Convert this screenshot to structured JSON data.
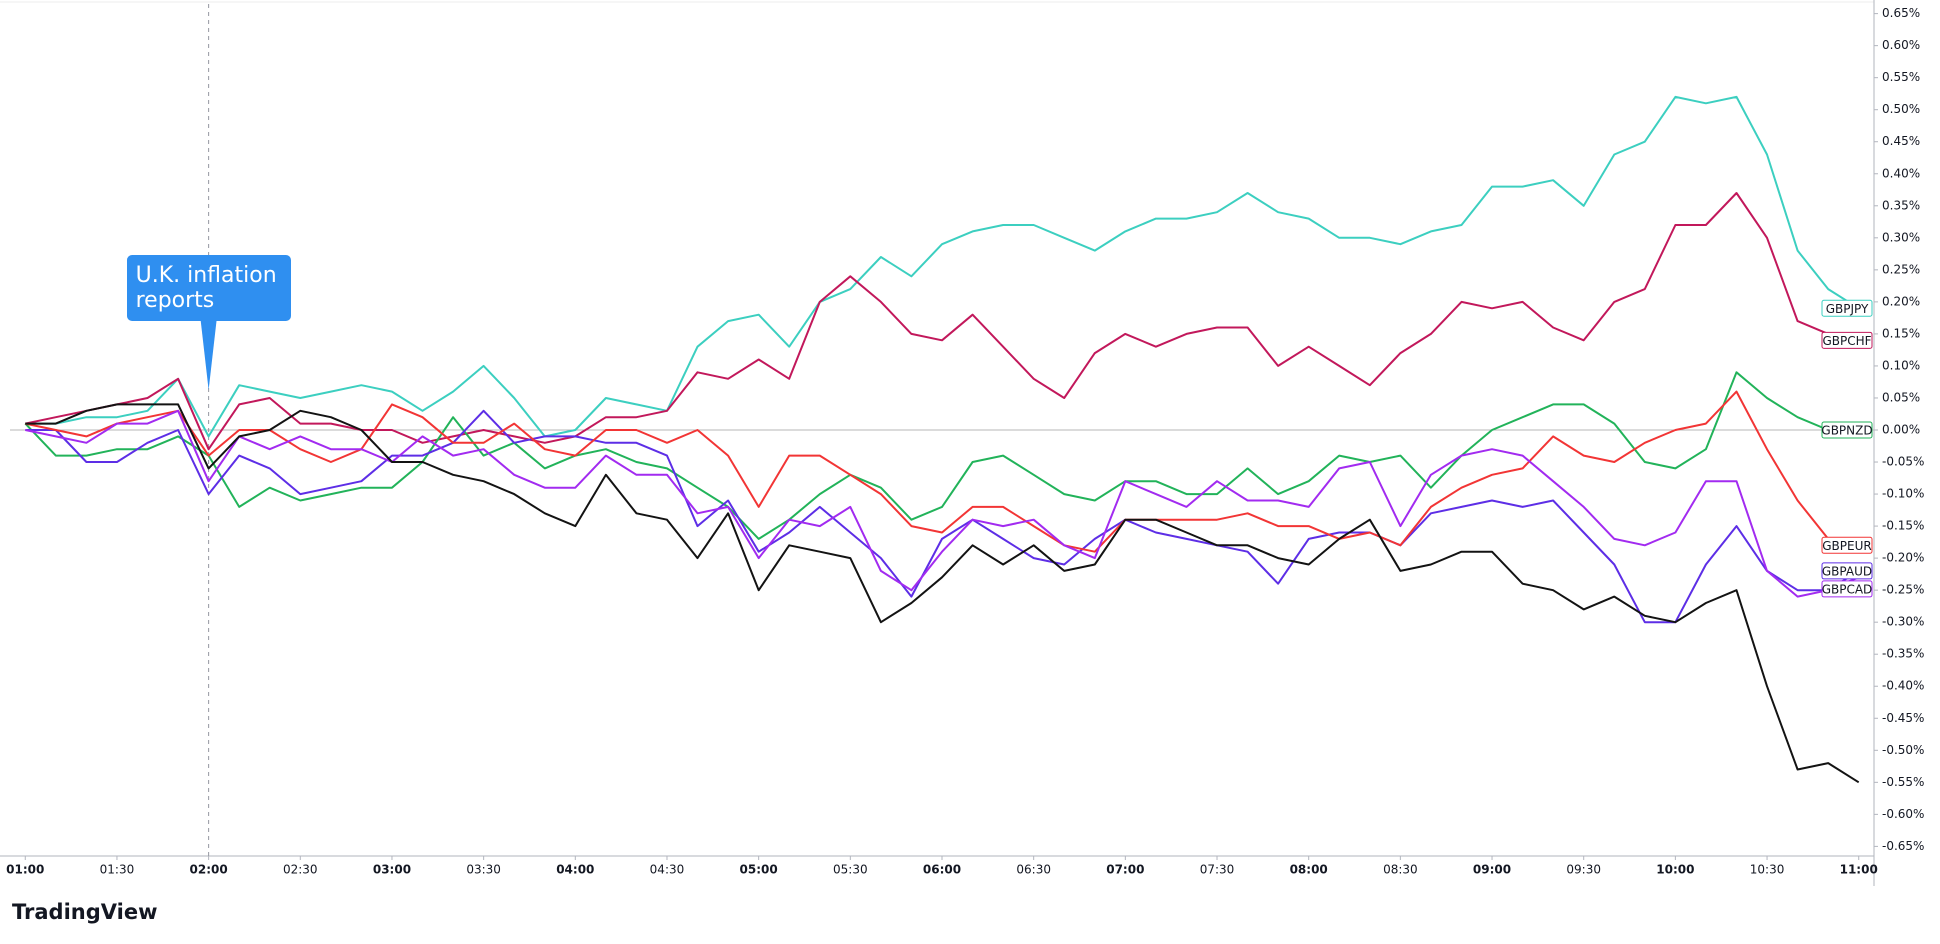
{
  "chart_data": {
    "type": "line",
    "x": [
      "01:00",
      "01:10",
      "01:20",
      "01:30",
      "01:40",
      "01:50",
      "02:00",
      "02:10",
      "02:20",
      "02:30",
      "02:40",
      "02:50",
      "03:00",
      "03:10",
      "03:20",
      "03:30",
      "03:40",
      "03:50",
      "04:00",
      "04:10",
      "04:20",
      "04:30",
      "04:40",
      "04:50",
      "05:00",
      "05:10",
      "05:20",
      "05:30",
      "05:40",
      "05:50",
      "06:00",
      "06:10",
      "06:20",
      "06:30",
      "06:40",
      "06:50",
      "07:00",
      "07:10",
      "07:20",
      "07:30",
      "07:40",
      "07:50",
      "08:00",
      "08:10",
      "08:20",
      "08:30",
      "08:40",
      "08:50",
      "09:00",
      "09:10",
      "09:20",
      "09:30",
      "09:40",
      "09:50",
      "10:00",
      "10:10",
      "10:20",
      "10:30",
      "10:40",
      "10:50",
      "11:00"
    ],
    "xlim": [
      "00:55",
      "11:05"
    ],
    "xticks": [
      "01:00",
      "01:30",
      "02:00",
      "02:30",
      "03:00",
      "03:30",
      "04:00",
      "04:30",
      "05:00",
      "05:30",
      "06:00",
      "06:30",
      "07:00",
      "07:30",
      "08:00",
      "08:30",
      "09:00",
      "09:30",
      "10:00",
      "10:30",
      "11:00"
    ],
    "ylim": [
      -0.665,
      0.665
    ],
    "yticks": [
      {
        "value": 0.65,
        "label": "0.65%"
      },
      {
        "value": 0.6,
        "label": "0.60%"
      },
      {
        "value": 0.55,
        "label": "0.55%"
      },
      {
        "value": 0.5,
        "label": "0.50%"
      },
      {
        "value": 0.45,
        "label": "0.45%"
      },
      {
        "value": 0.4,
        "label": "0.40%"
      },
      {
        "value": 0.35,
        "label": "0.35%"
      },
      {
        "value": 0.3,
        "label": "0.30%"
      },
      {
        "value": 0.25,
        "label": "0.25%"
      },
      {
        "value": 0.2,
        "label": "0.20%"
      },
      {
        "value": 0.15,
        "label": "0.15%"
      },
      {
        "value": 0.1,
        "label": "0.10%"
      },
      {
        "value": 0.05,
        "label": "0.05%"
      },
      {
        "value": 0,
        "label": "0.00%"
      },
      {
        "value": -0.05,
        "label": "-0.05%"
      },
      {
        "value": -0.1,
        "label": "-0.10%"
      },
      {
        "value": -0.15,
        "label": "-0.15%"
      },
      {
        "value": -0.2,
        "label": "-0.20%"
      },
      {
        "value": -0.25,
        "label": "-0.25%"
      },
      {
        "value": -0.3,
        "label": "-0.30%"
      },
      {
        "value": -0.35,
        "label": "-0.35%"
      },
      {
        "value": -0.4,
        "label": "-0.40%"
      },
      {
        "value": -0.45,
        "label": "-0.45%"
      },
      {
        "value": -0.5,
        "label": "-0.50%"
      },
      {
        "value": -0.55,
        "label": "-0.55%"
      },
      {
        "value": -0.6,
        "label": "-0.60%"
      },
      {
        "value": -0.65,
        "label": "-0.65%"
      }
    ],
    "series": [
      {
        "name": "GBPJPY",
        "color": "#3ccfc0",
        "values": [
          0.01,
          0.01,
          0.02,
          0.02,
          0.03,
          0.08,
          -0.01,
          0.07,
          0.06,
          0.05,
          0.06,
          0.07,
          0.06,
          0.03,
          0.06,
          0.1,
          0.05,
          -0.01,
          0.0,
          0.05,
          0.04,
          0.03,
          0.13,
          0.17,
          0.18,
          0.13,
          0.2,
          0.22,
          0.27,
          0.24,
          0.29,
          0.31,
          0.32,
          0.32,
          0.3,
          0.28,
          0.31,
          0.33,
          0.33,
          0.34,
          0.37,
          0.34,
          0.33,
          0.3,
          0.3,
          0.29,
          0.31,
          0.32,
          0.38,
          0.38,
          0.39,
          0.35,
          0.43,
          0.45,
          0.52,
          0.51,
          0.52,
          0.43,
          0.28,
          0.22,
          0.19
        ]
      },
      {
        "name": "GBPCHF",
        "color": "#c2185b",
        "values": [
          0.01,
          0.02,
          0.03,
          0.04,
          0.05,
          0.08,
          -0.03,
          0.04,
          0.05,
          0.01,
          0.01,
          0.0,
          0.0,
          -0.02,
          -0.01,
          0.0,
          -0.01,
          -0.02,
          -0.01,
          0.02,
          0.02,
          0.03,
          0.09,
          0.08,
          0.11,
          0.08,
          0.2,
          0.24,
          0.2,
          0.15,
          0.14,
          0.18,
          0.13,
          0.08,
          0.05,
          0.12,
          0.15,
          0.13,
          0.15,
          0.16,
          0.16,
          0.1,
          0.13,
          0.1,
          0.07,
          0.12,
          0.15,
          0.2,
          0.19,
          0.2,
          0.16,
          0.14,
          0.2,
          0.22,
          0.32,
          0.32,
          0.37,
          0.3,
          0.17,
          0.15,
          0.14
        ]
      },
      {
        "name": "GBPNZD",
        "color": "#22b35a",
        "values": [
          0.01,
          -0.04,
          -0.04,
          -0.03,
          -0.03,
          -0.01,
          -0.04,
          -0.12,
          -0.09,
          -0.11,
          -0.1,
          -0.09,
          -0.09,
          -0.05,
          0.02,
          -0.04,
          -0.02,
          -0.06,
          -0.04,
          -0.03,
          -0.05,
          -0.06,
          -0.09,
          -0.12,
          -0.17,
          -0.14,
          -0.1,
          -0.07,
          -0.09,
          -0.14,
          -0.12,
          -0.05,
          -0.04,
          -0.07,
          -0.1,
          -0.11,
          -0.08,
          -0.08,
          -0.1,
          -0.1,
          -0.06,
          -0.1,
          -0.08,
          -0.04,
          -0.05,
          -0.04,
          -0.09,
          -0.04,
          0.0,
          0.02,
          0.04,
          0.04,
          0.01,
          -0.05,
          -0.06,
          -0.03,
          0.09,
          0.05,
          0.02,
          0.0,
          0.0
        ]
      },
      {
        "name": "GBPAUD",
        "color": "#5d2ee6",
        "values": [
          0.0,
          0.0,
          -0.05,
          -0.05,
          -0.02,
          0.0,
          -0.1,
          -0.04,
          -0.06,
          -0.1,
          -0.09,
          -0.08,
          -0.04,
          -0.04,
          -0.02,
          0.03,
          -0.02,
          -0.01,
          -0.01,
          -0.02,
          -0.02,
          -0.04,
          -0.15,
          -0.11,
          -0.19,
          -0.16,
          -0.12,
          -0.16,
          -0.2,
          -0.26,
          -0.17,
          -0.14,
          -0.17,
          -0.2,
          -0.21,
          -0.17,
          -0.14,
          -0.16,
          -0.17,
          -0.18,
          -0.19,
          -0.24,
          -0.17,
          -0.16,
          -0.16,
          -0.18,
          -0.13,
          -0.12,
          -0.11,
          -0.12,
          -0.11,
          -0.16,
          -0.21,
          -0.3,
          -0.3,
          -0.21,
          -0.15,
          -0.22,
          -0.25,
          -0.25,
          -0.22
        ]
      },
      {
        "name": "GBPEUR",
        "color": "#f23535",
        "values": [
          0.01,
          0.0,
          -0.01,
          0.01,
          0.02,
          0.03,
          -0.04,
          0.0,
          0.0,
          -0.03,
          -0.05,
          -0.03,
          0.04,
          0.02,
          -0.02,
          -0.02,
          0.01,
          -0.03,
          -0.04,
          0.0,
          0.0,
          -0.02,
          0.0,
          -0.04,
          -0.12,
          -0.04,
          -0.04,
          -0.07,
          -0.1,
          -0.15,
          -0.16,
          -0.12,
          -0.12,
          -0.15,
          -0.18,
          -0.19,
          -0.14,
          -0.14,
          -0.14,
          -0.14,
          -0.13,
          -0.15,
          -0.15,
          -0.17,
          -0.16,
          -0.18,
          -0.12,
          -0.09,
          -0.07,
          -0.06,
          -0.01,
          -0.04,
          -0.05,
          -0.02,
          0.0,
          0.01,
          0.06,
          -0.03,
          -0.11,
          -0.17,
          -0.18
        ]
      },
      {
        "name": "GBPCAD",
        "color": "#a22bf0",
        "values": [
          0.0,
          -0.01,
          -0.02,
          0.01,
          0.01,
          0.03,
          -0.08,
          -0.01,
          -0.03,
          -0.01,
          -0.03,
          -0.03,
          -0.05,
          -0.01,
          -0.04,
          -0.03,
          -0.07,
          -0.09,
          -0.09,
          -0.04,
          -0.07,
          -0.07,
          -0.13,
          -0.12,
          -0.2,
          -0.14,
          -0.15,
          -0.12,
          -0.22,
          -0.25,
          -0.19,
          -0.14,
          -0.15,
          -0.14,
          -0.18,
          -0.2,
          -0.08,
          -0.1,
          -0.12,
          -0.08,
          -0.11,
          -0.11,
          -0.12,
          -0.06,
          -0.05,
          -0.15,
          -0.07,
          -0.04,
          -0.03,
          -0.04,
          -0.08,
          -0.12,
          -0.17,
          -0.18,
          -0.16,
          -0.08,
          -0.08,
          -0.22,
          -0.26,
          -0.25,
          -0.23
        ]
      },
      {
        "color": "#131313",
        "values": [
          0.01,
          0.01,
          0.03,
          0.04,
          0.04,
          0.04,
          -0.06,
          -0.01,
          0.0,
          0.03,
          0.02,
          0.0,
          -0.05,
          -0.05,
          -0.07,
          -0.08,
          -0.1,
          -0.13,
          -0.15,
          -0.07,
          -0.13,
          -0.14,
          -0.2,
          -0.13,
          -0.25,
          -0.18,
          -0.19,
          -0.2,
          -0.3,
          -0.27,
          -0.23,
          -0.18,
          -0.21,
          -0.18,
          -0.22,
          -0.21,
          -0.14,
          -0.14,
          -0.16,
          -0.18,
          -0.18,
          -0.2,
          -0.21,
          -0.17,
          -0.14,
          -0.22,
          -0.21,
          -0.19,
          -0.19,
          -0.24,
          -0.25,
          -0.28,
          -0.26,
          -0.29,
          -0.3,
          -0.27,
          -0.25,
          -0.4,
          -0.53,
          -0.52,
          -0.55
        ]
      }
    ],
    "annotations": [
      {
        "text": "U.K. inflation reports",
        "x": "02:00"
      }
    ],
    "branding": "TradingView"
  }
}
